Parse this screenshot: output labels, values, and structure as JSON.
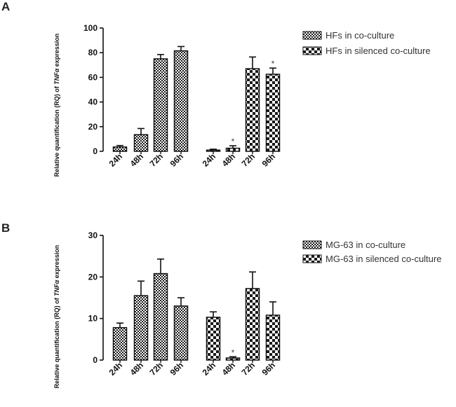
{
  "chart_data": [
    {
      "panel": "A",
      "type": "bar",
      "ylabel_prefix": "Relative quantification  (RQ) of ",
      "ylabel_gene": "TNFα",
      "ylabel_suffix": " expression",
      "ylim": [
        0,
        100
      ],
      "yticks": [
        "0",
        "20",
        "40",
        "60",
        "80",
        "100"
      ],
      "series": [
        {
          "name": "HFs in co-culture",
          "pattern": "small-check",
          "categories": [
            "24h",
            "48h",
            "72h",
            "96h"
          ],
          "values": [
            3.5,
            13.5,
            75,
            81.5
          ],
          "errors": [
            1.2,
            5,
            3.5,
            3.5
          ],
          "stars": [
            "",
            "",
            "",
            ""
          ]
        },
        {
          "name": "HFs in silenced co-culture",
          "pattern": "large-check",
          "categories": [
            "24h",
            "48h",
            "72h",
            "96h"
          ],
          "values": [
            1,
            2.5,
            67,
            62.5
          ],
          "errors": [
            0.7,
            2,
            9.5,
            5
          ],
          "stars": [
            "",
            "*",
            "",
            "*"
          ]
        }
      ]
    },
    {
      "panel": "B",
      "type": "bar",
      "ylabel_prefix": "Relative quantification  (RQ) of ",
      "ylabel_gene": "TNFα",
      "ylabel_suffix": " expression",
      "ylim": [
        0,
        30
      ],
      "yticks": [
        "0",
        "10",
        "20",
        "30"
      ],
      "series": [
        {
          "name": "MG-63 in co-culture",
          "pattern": "small-check",
          "categories": [
            "24h",
            "48h",
            "72h",
            "96h"
          ],
          "values": [
            7.8,
            15.5,
            20.8,
            13
          ],
          "errors": [
            1.1,
            3.5,
            3.5,
            2
          ],
          "stars": [
            "",
            "",
            "",
            ""
          ]
        },
        {
          "name": "MG-63 in silenced co-culture",
          "pattern": "large-check",
          "categories": [
            "24h",
            "48h",
            "72h",
            "96h"
          ],
          "values": [
            10.3,
            0.5,
            17.2,
            10.8
          ],
          "errors": [
            1.3,
            0.3,
            4,
            3.2
          ],
          "stars": [
            "",
            "*",
            "",
            ""
          ]
        }
      ]
    }
  ]
}
